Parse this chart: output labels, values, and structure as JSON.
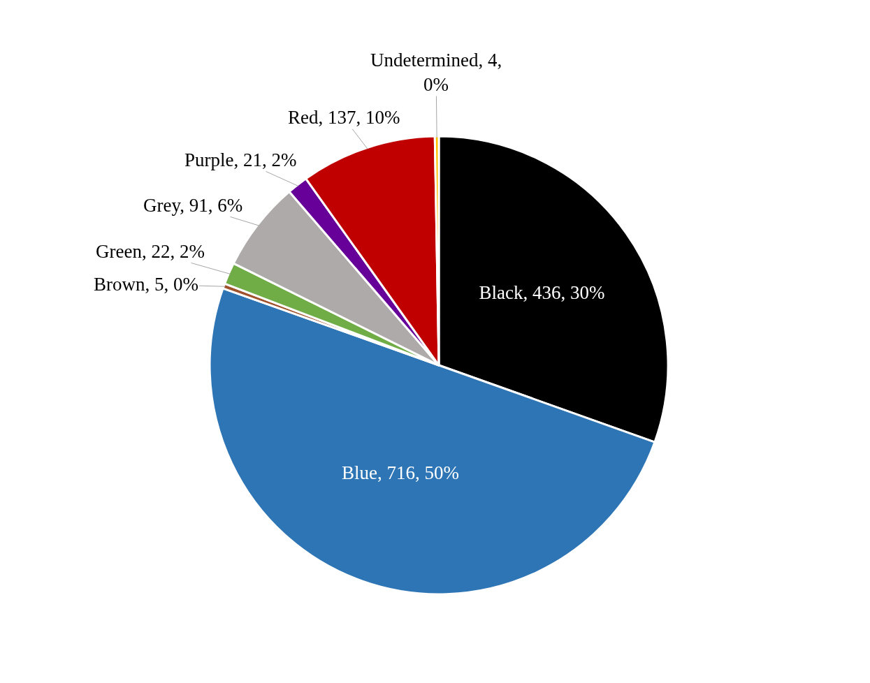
{
  "chart_data": {
    "type": "pie",
    "categories": [
      "Black",
      "Blue",
      "Brown",
      "Green",
      "Grey",
      "Purple",
      "Red",
      "Undetermined"
    ],
    "values": [
      436,
      716,
      5,
      22,
      91,
      21,
      137,
      4
    ],
    "colors": [
      "#000000",
      "#2e75b6",
      "#a0522d",
      "#70ad47",
      "#aeaaaa",
      "#660099",
      "#c00000",
      "#ffc000"
    ],
    "value_labels": [
      "436, 30%",
      "716, 50%",
      "5, 0%",
      "22, 2%",
      "91, 6%",
      "21, 2%",
      "137, 10%",
      "4, 0%"
    ],
    "legend": false
  }
}
